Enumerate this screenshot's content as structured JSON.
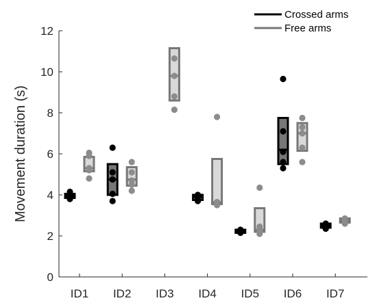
{
  "chart_data": {
    "type": "box",
    "ylabel": "Movement duration (s)",
    "xlabel": "",
    "ylim": [
      0,
      12
    ],
    "yticks": [
      0,
      2,
      4,
      6,
      8,
      10,
      12
    ],
    "categories": [
      "ID1",
      "ID2",
      "ID3",
      "ID4",
      "ID5",
      "ID6",
      "ID7"
    ],
    "legend": {
      "placement": "top-right"
    },
    "series": [
      {
        "name": "Crossed arms",
        "color": "#000000",
        "fill": "#777777",
        "point_color": "#000000",
        "groups": [
          {
            "category": "ID1",
            "box": [
              3.85,
              4.05
            ],
            "median": 3.95,
            "points": [
              3.8,
              3.95,
              4.15
            ]
          },
          {
            "category": "ID2",
            "box": [
              4.0,
              5.5
            ],
            "median": 4.75,
            "points": [
              3.7,
              4.05,
              4.75,
              5.1,
              6.3
            ]
          },
          {
            "category": "ID3",
            "box": null,
            "median": null,
            "points": []
          },
          {
            "category": "ID4",
            "box": [
              3.75,
              4.0
            ],
            "median": 3.9,
            "points": [
              3.7,
              3.85,
              4.0
            ]
          },
          {
            "category": "ID5",
            "box": [
              2.15,
              2.3
            ],
            "median": 2.22,
            "points": [
              2.15,
              2.25,
              2.3
            ]
          },
          {
            "category": "ID6",
            "box": [
              5.5,
              7.75
            ],
            "median": 6.2,
            "points": [
              5.3,
              5.6,
              6.1,
              7.1,
              9.65
            ]
          },
          {
            "category": "ID7",
            "box": [
              2.4,
              2.6
            ],
            "median": 2.5,
            "points": [
              2.35,
              2.5,
              2.6
            ]
          }
        ]
      },
      {
        "name": "Free arms",
        "color": "#777777",
        "fill": "#d9d9d9",
        "point_color": "#8c8c8c",
        "groups": [
          {
            "category": "ID1",
            "box": [
              5.15,
              5.85
            ],
            "median": 5.3,
            "points": [
              4.8,
              5.2,
              5.3,
              5.9,
              6.05
            ]
          },
          {
            "category": "ID2",
            "box": [
              4.45,
              5.35
            ],
            "median": 4.75,
            "points": [
              4.2,
              4.5,
              4.7,
              5.1,
              5.6
            ]
          },
          {
            "category": "ID3",
            "box": [
              8.6,
              11.15
            ],
            "median": 9.8,
            "points": [
              8.15,
              8.8,
              9.8,
              10.65
            ]
          },
          {
            "category": "ID4",
            "box": [
              3.55,
              5.75
            ],
            "median": 3.65,
            "points": [
              3.5,
              3.55,
              3.65,
              7.8
            ]
          },
          {
            "category": "ID5",
            "box": [
              2.2,
              3.35
            ],
            "median": 2.3,
            "points": [
              2.1,
              2.2,
              2.3,
              2.45,
              4.35
            ]
          },
          {
            "category": "ID6",
            "box": [
              6.15,
              7.5
            ],
            "median": 7.0,
            "points": [
              5.6,
              6.3,
              7.0,
              7.3,
              7.75
            ]
          },
          {
            "category": "ID7",
            "box": [
              2.65,
              2.85
            ],
            "median": 2.75,
            "points": [
              2.6,
              2.75,
              2.85
            ]
          }
        ]
      }
    ]
  }
}
